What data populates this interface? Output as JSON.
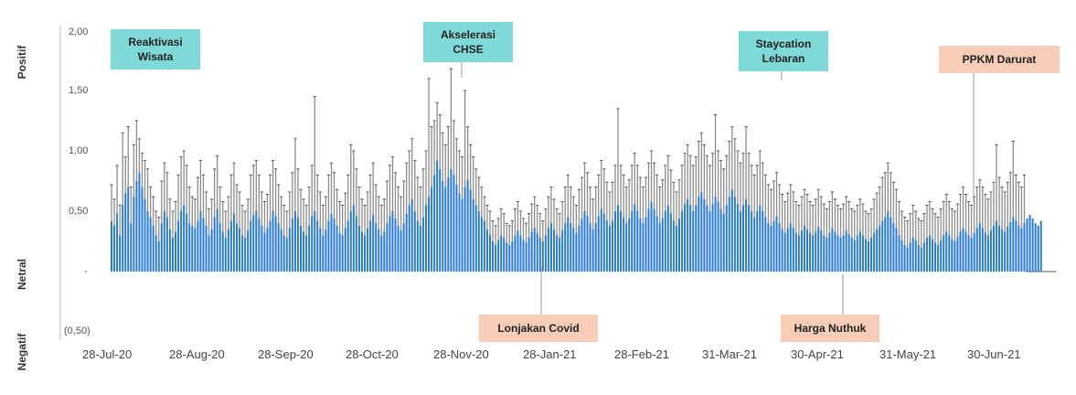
{
  "chart_data": {
    "type": "bar",
    "title": "",
    "xlabel": "",
    "ylabel": "",
    "ylim": [
      -0.5,
      2.0
    ],
    "y_ticks": [
      "2,00",
      "1,50",
      "1,00",
      "0,50",
      "-",
      "(0,50)"
    ],
    "y_sentiment_labels": [
      "Positif",
      "Netral",
      "Negatif"
    ],
    "x_tick_labels": [
      "28-Jul-20",
      "28-Aug-20",
      "28-Sep-20",
      "28-Oct-20",
      "28-Nov-20",
      "28-Jan-21",
      "28-Feb-21",
      "31-Mar-21",
      "30-Apr-21",
      "31-May-21",
      "30-Jun-21"
    ],
    "x_tick_indices": [
      0,
      32,
      64,
      94,
      125,
      153,
      184,
      215,
      245,
      276,
      306
    ],
    "n_days": 340,
    "grid": false,
    "series": [
      {
        "color": "#2b7bd0",
        "values": [
          0.42,
          0.38,
          0.48,
          0.3,
          0.55,
          0.65,
          0.7,
          0.4,
          0.62,
          0.75,
          0.82,
          0.7,
          0.6,
          0.5,
          0.45,
          0.38,
          0.3,
          0.25,
          0.4,
          0.5,
          0.45,
          0.35,
          0.28,
          0.33,
          0.42,
          0.5,
          0.55,
          0.48,
          0.4,
          0.38,
          0.36,
          0.42,
          0.5,
          0.44,
          0.38,
          0.3,
          0.35,
          0.45,
          0.52,
          0.4,
          0.33,
          0.28,
          0.35,
          0.42,
          0.48,
          0.4,
          0.36,
          0.3,
          0.28,
          0.34,
          0.42,
          0.47,
          0.5,
          0.44,
          0.38,
          0.32,
          0.36,
          0.42,
          0.5,
          0.46,
          0.4,
          0.35,
          0.3,
          0.28,
          0.36,
          0.44,
          0.5,
          0.45,
          0.38,
          0.33,
          0.3,
          0.38,
          0.46,
          0.5,
          0.42,
          0.36,
          0.3,
          0.35,
          0.42,
          0.48,
          0.44,
          0.38,
          0.32,
          0.3,
          0.36,
          0.42,
          0.5,
          0.55,
          0.46,
          0.38,
          0.33,
          0.3,
          0.36,
          0.42,
          0.47,
          0.4,
          0.35,
          0.3,
          0.33,
          0.4,
          0.46,
          0.5,
          0.44,
          0.38,
          0.34,
          0.4,
          0.48,
          0.55,
          0.6,
          0.5,
          0.42,
          0.38,
          0.45,
          0.55,
          0.62,
          0.7,
          0.8,
          0.92,
          0.85,
          0.75,
          0.7,
          0.78,
          0.85,
          0.8,
          0.72,
          0.65,
          0.6,
          0.7,
          0.76,
          0.68,
          0.6,
          0.55,
          0.5,
          0.45,
          0.42,
          0.35,
          0.3,
          0.25,
          0.22,
          0.26,
          0.3,
          0.28,
          0.24,
          0.22,
          0.25,
          0.3,
          0.34,
          0.3,
          0.26,
          0.24,
          0.28,
          0.33,
          0.36,
          0.32,
          0.28,
          0.25,
          0.3,
          0.36,
          0.4,
          0.35,
          0.3,
          0.28,
          0.34,
          0.4,
          0.45,
          0.4,
          0.36,
          0.32,
          0.38,
          0.44,
          0.5,
          0.46,
          0.4,
          0.35,
          0.4,
          0.46,
          0.52,
          0.48,
          0.42,
          0.38,
          0.42,
          0.5,
          0.55,
          0.5,
          0.45,
          0.4,
          0.44,
          0.5,
          0.56,
          0.5,
          0.44,
          0.4,
          0.45,
          0.52,
          0.58,
          0.52,
          0.46,
          0.4,
          0.44,
          0.5,
          0.55,
          0.48,
          0.42,
          0.38,
          0.44,
          0.5,
          0.56,
          0.6,
          0.55,
          0.5,
          0.55,
          0.62,
          0.66,
          0.6,
          0.55,
          0.5,
          0.56,
          0.62,
          0.58,
          0.52,
          0.48,
          0.55,
          0.62,
          0.68,
          0.62,
          0.56,
          0.5,
          0.55,
          0.6,
          0.55,
          0.5,
          0.45,
          0.5,
          0.55,
          0.5,
          0.45,
          0.4,
          0.38,
          0.42,
          0.46,
          0.4,
          0.35,
          0.32,
          0.36,
          0.4,
          0.36,
          0.32,
          0.3,
          0.34,
          0.38,
          0.35,
          0.32,
          0.3,
          0.33,
          0.37,
          0.34,
          0.3,
          0.28,
          0.32,
          0.36,
          0.33,
          0.3,
          0.28,
          0.3,
          0.34,
          0.31,
          0.28,
          0.26,
          0.3,
          0.33,
          0.3,
          0.27,
          0.25,
          0.28,
          0.32,
          0.35,
          0.38,
          0.42,
          0.45,
          0.5,
          0.45,
          0.4,
          0.36,
          0.3,
          0.26,
          0.22,
          0.2,
          0.24,
          0.28,
          0.26,
          0.22,
          0.2,
          0.24,
          0.28,
          0.3,
          0.27,
          0.24,
          0.22,
          0.26,
          0.3,
          0.33,
          0.3,
          0.27,
          0.25,
          0.29,
          0.33,
          0.36,
          0.33,
          0.3,
          0.28,
          0.32,
          0.36,
          0.4,
          0.36,
          0.32,
          0.3,
          0.34,
          0.38,
          0.42,
          0.38,
          0.35,
          0.33,
          0.37,
          0.41,
          0.45,
          0.42,
          0.38,
          0.36,
          0.4,
          0.44,
          0.47,
          0.44,
          0.4,
          0.38,
          0.42
        ]
      },
      {
        "color": "#8c8c8c",
        "values": [
          0.72,
          0.6,
          0.88,
          0.55,
          1.15,
          0.95,
          1.2,
          0.7,
          1.05,
          1.25,
          1.1,
          0.98,
          0.92,
          0.85,
          0.7,
          0.62,
          0.5,
          0.45,
          0.75,
          0.9,
          0.82,
          0.6,
          0.5,
          0.58,
          0.8,
          0.95,
          1.0,
          0.88,
          0.7,
          0.62,
          0.6,
          0.78,
          0.92,
          0.8,
          0.66,
          0.52,
          0.6,
          0.85,
          0.96,
          0.7,
          0.58,
          0.5,
          0.62,
          0.8,
          0.9,
          0.72,
          0.66,
          0.55,
          0.5,
          0.6,
          0.8,
          0.88,
          0.92,
          0.8,
          0.66,
          0.58,
          0.64,
          0.8,
          0.92,
          0.85,
          0.72,
          0.62,
          0.55,
          0.5,
          0.66,
          0.82,
          1.1,
          0.85,
          0.68,
          0.6,
          0.55,
          0.7,
          0.88,
          1.45,
          0.8,
          0.66,
          0.55,
          0.62,
          0.8,
          0.9,
          0.82,
          0.68,
          0.58,
          0.55,
          0.65,
          0.8,
          1.05,
          1.0,
          0.85,
          0.7,
          0.6,
          0.55,
          0.66,
          0.8,
          0.9,
          0.72,
          0.62,
          0.55,
          0.6,
          0.75,
          0.88,
          0.95,
          0.82,
          0.7,
          0.62,
          0.75,
          0.9,
          1.0,
          1.1,
          0.92,
          0.78,
          0.7,
          0.85,
          1.0,
          1.6,
          1.2,
          1.25,
          1.4,
          1.3,
          1.15,
          1.05,
          1.2,
          1.68,
          1.25,
          1.1,
          1.0,
          0.95,
          1.5,
          1.2,
          1.05,
          0.95,
          0.85,
          0.78,
          0.7,
          0.62,
          0.55,
          0.5,
          0.42,
          0.38,
          0.44,
          0.52,
          0.48,
          0.4,
          0.38,
          0.42,
          0.52,
          0.58,
          0.5,
          0.44,
          0.4,
          0.48,
          0.56,
          0.62,
          0.55,
          0.48,
          0.42,
          0.52,
          0.62,
          0.7,
          0.6,
          0.52,
          0.48,
          0.58,
          0.7,
          0.8,
          0.7,
          0.62,
          0.55,
          0.68,
          0.78,
          0.9,
          0.82,
          0.7,
          0.6,
          0.7,
          0.8,
          0.92,
          0.85,
          0.74,
          0.66,
          0.74,
          0.88,
          1.35,
          0.88,
          0.8,
          0.7,
          0.76,
          0.88,
          0.98,
          0.88,
          0.78,
          0.7,
          0.78,
          0.9,
          1.0,
          0.9,
          0.8,
          0.7,
          0.76,
          0.88,
          0.96,
          0.84,
          0.74,
          0.66,
          0.76,
          0.88,
          0.98,
          1.05,
          0.96,
          0.88,
          0.95,
          1.08,
          1.15,
          1.05,
          0.96,
          0.88,
          0.98,
          1.3,
          1.0,
          0.92,
          0.85,
          0.96,
          1.08,
          1.2,
          1.1,
          1.0,
          0.9,
          0.98,
          1.2,
          0.98,
          0.88,
          0.8,
          0.88,
          1.0,
          0.9,
          0.8,
          0.72,
          0.68,
          0.75,
          0.82,
          0.72,
          0.64,
          0.58,
          0.65,
          0.72,
          0.66,
          0.58,
          0.55,
          0.62,
          0.68,
          0.64,
          0.58,
          0.55,
          0.6,
          0.68,
          0.62,
          0.56,
          0.52,
          0.58,
          0.66,
          0.6,
          0.55,
          0.52,
          0.56,
          0.62,
          0.58,
          0.52,
          0.5,
          0.55,
          0.6,
          0.56,
          0.5,
          0.48,
          0.52,
          0.6,
          0.65,
          0.7,
          0.78,
          0.82,
          0.9,
          0.82,
          0.74,
          0.68,
          0.58,
          0.5,
          0.45,
          0.42,
          0.48,
          0.55,
          0.5,
          0.44,
          0.42,
          0.48,
          0.55,
          0.58,
          0.52,
          0.48,
          0.45,
          0.52,
          0.58,
          0.64,
          0.58,
          0.52,
          0.5,
          0.56,
          0.64,
          0.7,
          0.64,
          0.58,
          0.55,
          0.62,
          0.7,
          0.76,
          0.7,
          0.64,
          0.6,
          0.66,
          0.74,
          1.05,
          0.78,
          0.7,
          0.66,
          0.74,
          0.82,
          1.08,
          0.8,
          0.74,
          0.7,
          0.8
        ]
      }
    ],
    "annotations": [
      {
        "lines": [
          "Reaktivasi",
          "Wisata"
        ],
        "type": "positive",
        "fill": "#7fd9d6"
      },
      {
        "lines": [
          "Akselerasi",
          "CHSE"
        ],
        "type": "positive",
        "fill": "#7fd9d6"
      },
      {
        "lines": [
          "Staycation",
          "Lebaran"
        ],
        "type": "positive",
        "fill": "#7fd9d6"
      },
      {
        "lines": [
          "PPKM Darurat"
        ],
        "type": "negative",
        "fill": "#f7cdb8"
      },
      {
        "lines": [
          "Lonjakan Covid"
        ],
        "type": "negative",
        "fill": "#f7cdb8"
      },
      {
        "lines": [
          "Harga Nuthuk"
        ],
        "type": "negative",
        "fill": "#f7cdb8"
      }
    ]
  }
}
